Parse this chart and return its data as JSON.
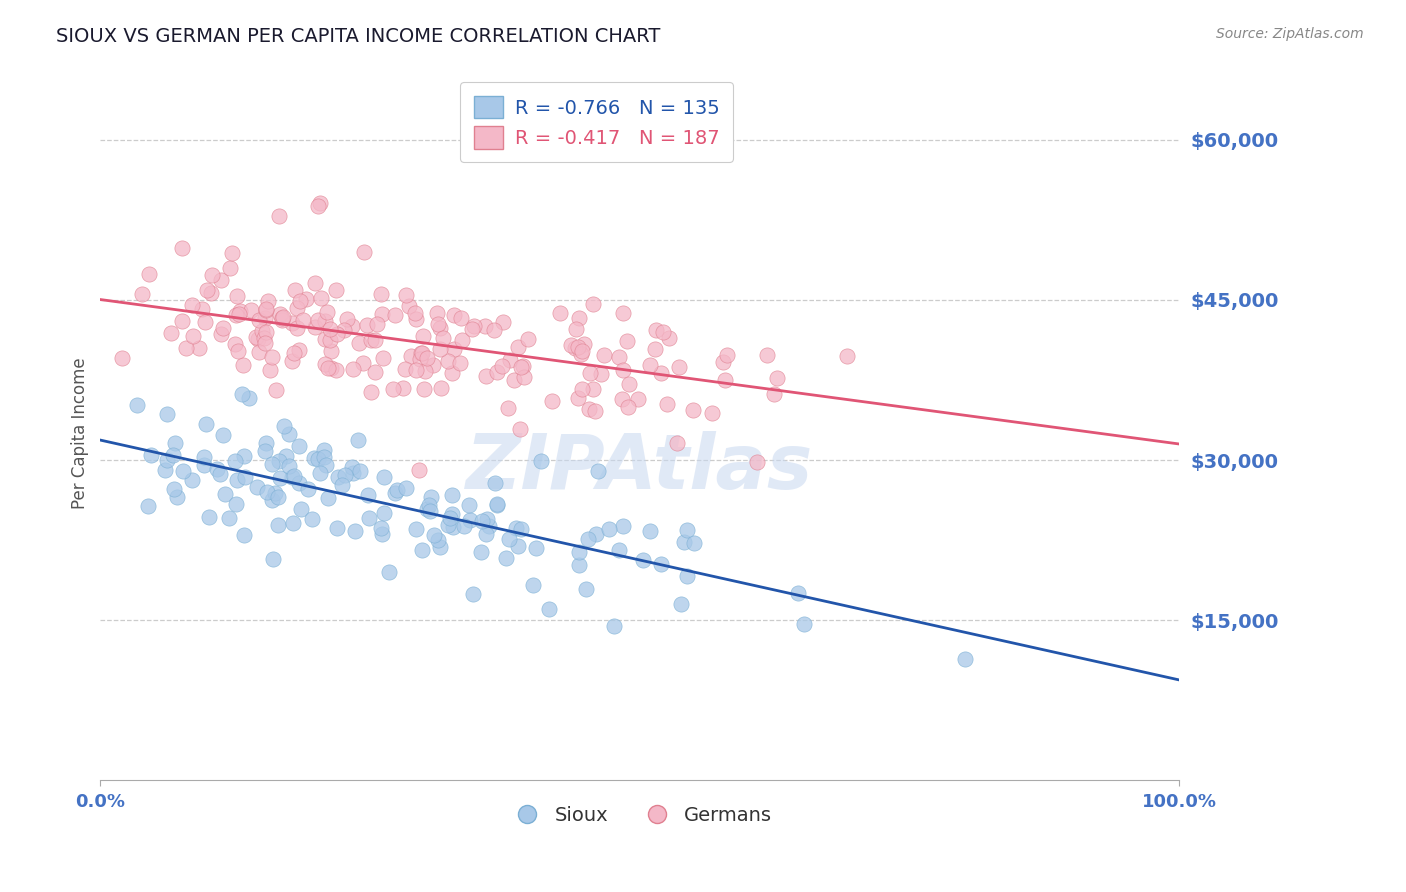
{
  "title": "SIOUX VS GERMAN PER CAPITA INCOME CORRELATION CHART",
  "source_text": "Source: ZipAtlas.com",
  "ylabel": "Per Capita Income",
  "xlim": [
    0.0,
    1.0
  ],
  "ylim": [
    0,
    65000
  ],
  "yticks": [
    15000,
    30000,
    45000,
    60000
  ],
  "ytick_labels": [
    "$15,000",
    "$30,000",
    "$45,000",
    "$60,000"
  ],
  "xtick_labels": [
    "0.0%",
    "100.0%"
  ],
  "title_color": "#1a1a2e",
  "axis_tick_color": "#4472c4",
  "grid_color": "#cccccc",
  "sioux_color": "#a8c8e8",
  "sioux_edge_color": "#7bafd4",
  "sioux_line_color": "#2255aa",
  "german_color": "#f4b8c8",
  "german_edge_color": "#e08090",
  "german_line_color": "#e05575",
  "legend_sioux_text": "R = -0.766   N = 135",
  "legend_german_text": "R = -0.417   N = 187",
  "watermark": "ZIPAtlas",
  "sioux_r": -0.766,
  "sioux_n": 135,
  "german_r": -0.417,
  "german_n": 187,
  "sioux_line_y0": 32000,
  "sioux_line_y1": 9000,
  "german_line_y0": 44000,
  "german_line_y1": 34000,
  "background_color": "#ffffff"
}
